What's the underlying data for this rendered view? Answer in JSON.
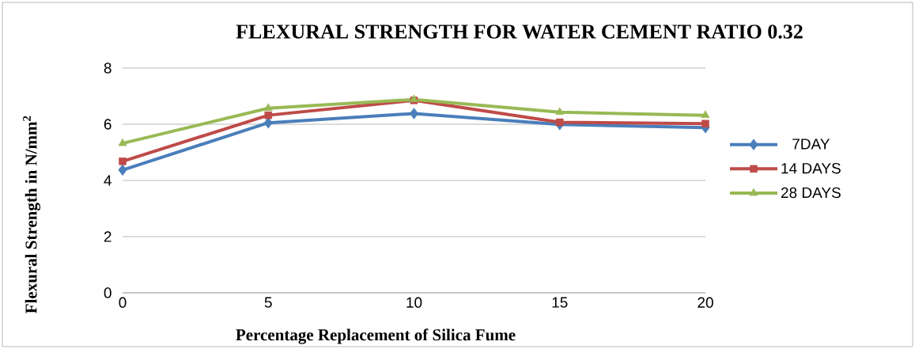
{
  "chart_data": {
    "type": "line",
    "title": "FLEXURAL STRENGTH FOR WATER CEMENT RATIO 0.32",
    "xlabel": "Percentage Replacement of Silica Fume",
    "ylabel": "Flexural  Strength in N/mm$^{2}$",
    "x": [
      0,
      5,
      10,
      15,
      20
    ],
    "xlim": [
      0,
      20
    ],
    "xticks": [
      0,
      5,
      10,
      15,
      20
    ],
    "ylim": [
      0,
      8
    ],
    "yticks": [
      0,
      2,
      4,
      6,
      8
    ],
    "grid": "y",
    "legend": "right",
    "series": [
      {
        "name": "7DAY",
        "color": "#4a7ebb",
        "marker": "diamond",
        "values": [
          4.37,
          6.05,
          6.38,
          5.99,
          5.88
        ]
      },
      {
        "name": "14 DAYS",
        "color": "#be4b48",
        "marker": "square",
        "values": [
          4.68,
          6.32,
          6.85,
          6.07,
          6.02
        ]
      },
      {
        "name": "28 DAYS",
        "color": "#98b954",
        "marker": "triangle",
        "values": [
          5.32,
          6.57,
          6.88,
          6.43,
          6.32
        ]
      }
    ]
  }
}
